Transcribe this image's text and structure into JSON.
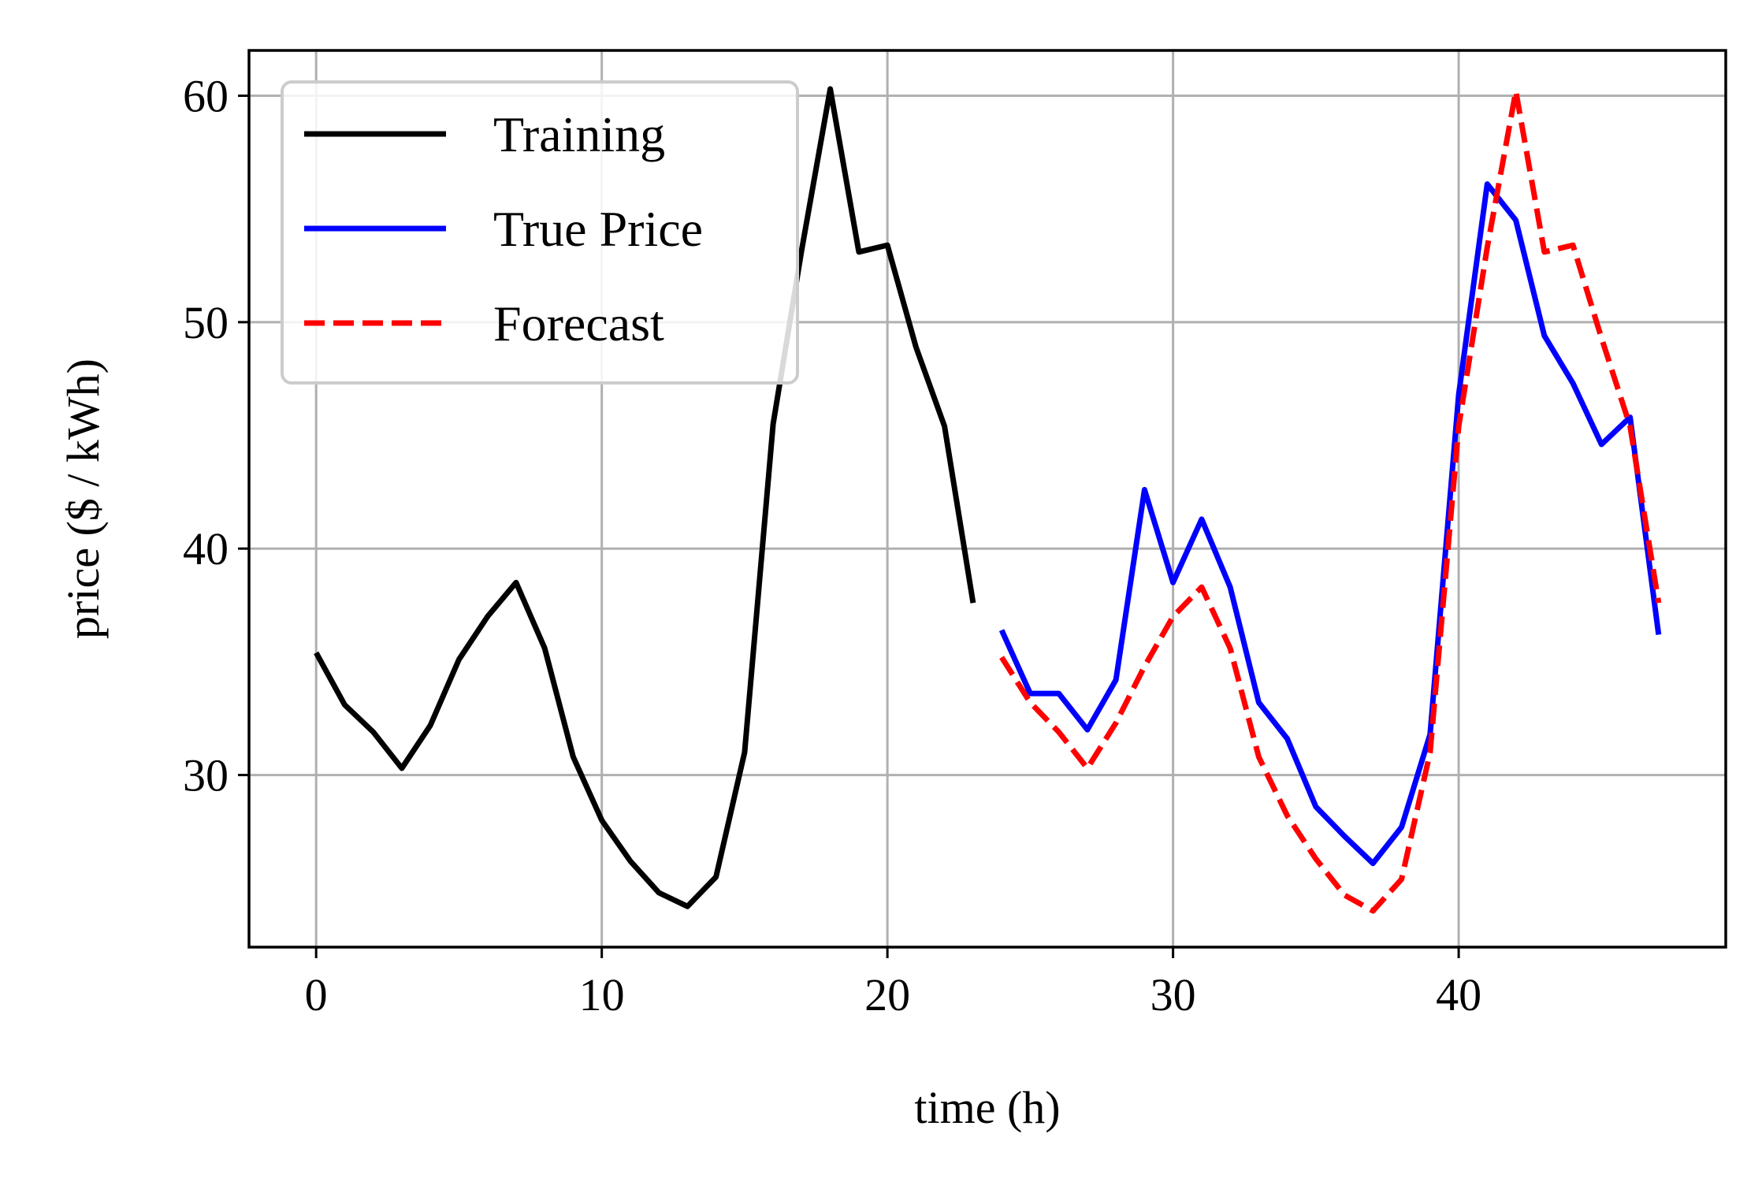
{
  "chart_data": {
    "type": "line",
    "xlabel": "time (h)",
    "ylabel": "price ($ / kWh)",
    "xlim": [
      -2.35,
      49.35
    ],
    "ylim": [
      22.4,
      62.0
    ],
    "xticks": [
      0,
      10,
      20,
      30,
      40
    ],
    "yticks": [
      30,
      40,
      50,
      60
    ],
    "grid": true,
    "legend": {
      "position": "top-left"
    },
    "series": [
      {
        "name": "Training",
        "color": "#000000",
        "style": "solid",
        "x": [
          0,
          1,
          2,
          3,
          4,
          5,
          6,
          7,
          8,
          9,
          10,
          11,
          12,
          13,
          14,
          15,
          16,
          17,
          18,
          19,
          20,
          21,
          22,
          23
        ],
        "y": [
          35.4,
          33.1,
          31.9,
          30.3,
          32.2,
          35.1,
          37.0,
          38.5,
          35.6,
          30.8,
          28.0,
          26.2,
          24.8,
          24.2,
          25.5,
          31.0,
          45.5,
          53.2,
          60.3,
          53.1,
          53.4,
          48.9,
          45.4,
          37.6
        ]
      },
      {
        "name": "True Price",
        "color": "#0000ff",
        "style": "solid",
        "x": [
          24,
          25,
          26,
          27,
          28,
          29,
          30,
          31,
          32,
          33,
          34,
          35,
          36,
          37,
          38,
          39,
          40,
          41,
          42,
          43,
          44,
          45,
          46,
          47
        ],
        "y": [
          36.4,
          33.6,
          33.6,
          32.0,
          34.2,
          42.6,
          38.5,
          41.3,
          38.3,
          33.2,
          31.6,
          28.6,
          27.3,
          26.1,
          27.7,
          31.8,
          46.8,
          56.1,
          54.5,
          49.4,
          47.3,
          44.6,
          45.8,
          36.2
        ]
      },
      {
        "name": "Forecast",
        "color": "#ff0000",
        "style": "dashed",
        "x": [
          24,
          25,
          26,
          27,
          28,
          29,
          30,
          31,
          32,
          33,
          34,
          35,
          36,
          37,
          38,
          39,
          40,
          41,
          42,
          43,
          44,
          45,
          46,
          47
        ],
        "y": [
          35.2,
          33.2,
          31.9,
          30.3,
          32.3,
          34.8,
          37.0,
          38.3,
          35.6,
          30.8,
          28.2,
          26.3,
          24.7,
          24.0,
          25.4,
          31.0,
          45.4,
          53.3,
          60.2,
          53.1,
          53.4,
          49.3,
          45.4,
          37.6
        ]
      }
    ]
  }
}
